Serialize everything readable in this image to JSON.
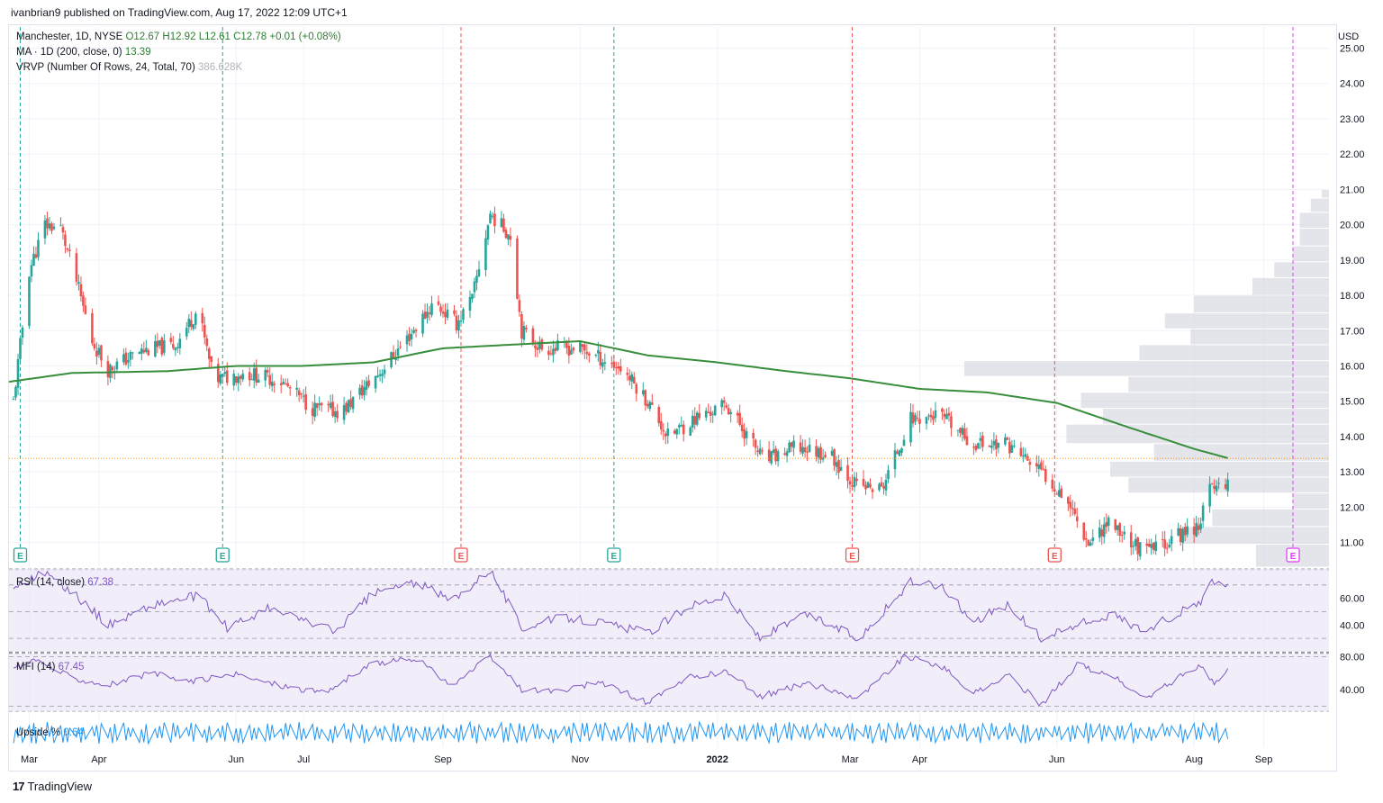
{
  "publisher": "ivanbrian9 published on TradingView.com, Aug 17, 2022 12:09 UTC+1",
  "footer": {
    "logo_glyph": "17",
    "brand": "TradingView"
  },
  "legend": {
    "symbol": "Manchester, 1D, NYSE",
    "open": "O12.67",
    "high": "H12.92",
    "low": "L12.61",
    "close": "C12.78",
    "change": "+0.01 (+0.08%)",
    "ma_label": "MA · 1D (200, close, 0)",
    "ma_value": "13.39",
    "vrvp_label": "VRVP (Number Of Rows, 24, Total, 70)",
    "vrvp_value": "386.628K",
    "rsi_label": "RSI (14, close)",
    "rsi_value": "67.38",
    "mfi_label": "MFI (14)",
    "mfi_value": "67.45",
    "upside_label": "Upside %",
    "upside_value": "0.64"
  },
  "colors": {
    "up": "#26a69a",
    "down": "#ef5350",
    "ma": "#388e3c",
    "rsi": "#7e57c2",
    "upside": "#2196f3",
    "earnings_future": "#e040fb"
  },
  "chart_data": [
    {
      "type": "candlestick",
      "currency": "USD",
      "y_ticks": [
        "11.00",
        "12.00",
        "13.00",
        "14.00",
        "15.00",
        "16.00",
        "17.00",
        "18.00",
        "19.00",
        "20.00",
        "21.00",
        "22.00",
        "23.00",
        "24.00",
        "25.00"
      ],
      "ylim": [
        10.3,
        25.6
      ],
      "x_ticks": [
        "Mar",
        "Apr",
        "Jun",
        "Jul",
        "Sep",
        "Nov",
        "2022",
        "Mar",
        "Apr",
        "Jun",
        "Aug",
        "Sep"
      ],
      "x_tick_dates": [
        "2021-03-01",
        "2021-04-01",
        "2021-06-01",
        "2021-07-01",
        "2021-09-01",
        "2021-11-01",
        "2022-01-01",
        "2022-03-01",
        "2022-04-01",
        "2022-06-01",
        "2022-08-01",
        "2022-09-01"
      ],
      "xlim": [
        "2021-02-20",
        "2022-09-30"
      ],
      "last_price": 12.78,
      "price_anchors": [
        [
          "2021-02-22",
          15.0
        ],
        [
          "2021-03-01",
          18.7
        ],
        [
          "2021-03-08",
          20.0
        ],
        [
          "2021-03-15",
          19.9
        ],
        [
          "2021-03-22",
          18.4
        ],
        [
          "2021-03-29",
          16.7
        ],
        [
          "2021-04-05",
          15.9
        ],
        [
          "2021-04-19",
          16.4
        ],
        [
          "2021-05-05",
          16.6
        ],
        [
          "2021-05-15",
          17.6
        ],
        [
          "2021-05-22",
          15.6
        ],
        [
          "2021-06-05",
          15.8
        ],
        [
          "2021-06-20",
          15.6
        ],
        [
          "2021-07-05",
          14.8
        ],
        [
          "2021-07-18",
          14.7
        ],
        [
          "2021-08-05",
          15.9
        ],
        [
          "2021-08-20",
          17.1
        ],
        [
          "2021-08-28",
          17.8
        ],
        [
          "2021-09-07",
          17.2
        ],
        [
          "2021-09-14",
          17.9
        ],
        [
          "2021-09-22",
          20.3
        ],
        [
          "2021-10-01",
          19.7
        ],
        [
          "2021-10-06",
          17.0
        ],
        [
          "2021-10-15",
          16.5
        ],
        [
          "2021-11-01",
          16.5
        ],
        [
          "2021-11-20",
          15.9
        ],
        [
          "2021-12-01",
          15.0
        ],
        [
          "2021-12-10",
          14.0
        ],
        [
          "2021-12-22",
          14.5
        ],
        [
          "2022-01-05",
          14.9
        ],
        [
          "2022-01-22",
          13.3
        ],
        [
          "2022-02-05",
          13.7
        ],
        [
          "2022-02-20",
          13.5
        ],
        [
          "2022-03-04",
          12.6
        ],
        [
          "2022-03-15",
          12.5
        ],
        [
          "2022-03-28",
          14.5
        ],
        [
          "2022-04-10",
          14.6
        ],
        [
          "2022-04-24",
          13.8
        ],
        [
          "2022-05-10",
          13.8
        ],
        [
          "2022-05-25",
          13.0
        ],
        [
          "2022-06-05",
          12.3
        ],
        [
          "2022-06-15",
          11.0
        ],
        [
          "2022-06-24",
          11.6
        ],
        [
          "2022-07-10",
          10.7
        ],
        [
          "2022-07-22",
          11.1
        ],
        [
          "2022-08-03",
          11.5
        ],
        [
          "2022-08-08",
          12.5
        ],
        [
          "2022-08-16",
          12.78
        ]
      ],
      "ma200_anchors": [
        [
          "2021-02-20",
          15.55
        ],
        [
          "2021-03-20",
          15.8
        ],
        [
          "2021-05-01",
          15.85
        ],
        [
          "2021-06-01",
          16.0
        ],
        [
          "2021-07-01",
          16.0
        ],
        [
          "2021-08-01",
          16.1
        ],
        [
          "2021-09-01",
          16.5
        ],
        [
          "2021-10-01",
          16.6
        ],
        [
          "2021-11-01",
          16.7
        ],
        [
          "2021-12-01",
          16.3
        ],
        [
          "2022-01-01",
          16.1
        ],
        [
          "2022-02-01",
          15.85
        ],
        [
          "2022-03-01",
          15.65
        ],
        [
          "2022-04-01",
          15.35
        ],
        [
          "2022-05-01",
          15.25
        ],
        [
          "2022-06-01",
          14.95
        ],
        [
          "2022-07-01",
          14.3
        ],
        [
          "2022-08-01",
          13.65
        ],
        [
          "2022-08-16",
          13.39
        ]
      ],
      "earnings": [
        {
          "date": "2021-02-25",
          "kind": "beat"
        },
        {
          "date": "2021-05-26",
          "kind": "beat"
        },
        {
          "date": "2021-09-09",
          "kind": "miss"
        },
        {
          "date": "2021-11-16",
          "kind": "beat"
        },
        {
          "date": "2022-03-02",
          "kind": "miss"
        },
        {
          "date": "2022-05-31",
          "kind": "miss"
        },
        {
          "date": "2022-09-14",
          "kind": "upcoming"
        }
      ],
      "volume_profile_rows": [
        {
          "low": 10.3,
          "high": 10.95,
          "vol": 0.2
        },
        {
          "low": 10.95,
          "high": 11.45,
          "vol": 0.4
        },
        {
          "low": 11.45,
          "high": 11.95,
          "vol": 0.32
        },
        {
          "low": 11.95,
          "high": 12.4,
          "vol": 0.1
        },
        {
          "low": 12.4,
          "high": 12.85,
          "vol": 0.55
        },
        {
          "low": 12.85,
          "high": 13.3,
          "vol": 0.6
        },
        {
          "low": 13.3,
          "high": 13.8,
          "vol": 0.48
        },
        {
          "low": 13.8,
          "high": 14.35,
          "vol": 0.72
        },
        {
          "low": 14.35,
          "high": 14.8,
          "vol": 0.62
        },
        {
          "low": 14.8,
          "high": 15.25,
          "vol": 0.68
        },
        {
          "low": 15.25,
          "high": 15.7,
          "vol": 0.55
        },
        {
          "low": 15.7,
          "high": 16.15,
          "vol": 1.0
        },
        {
          "low": 16.15,
          "high": 16.6,
          "vol": 0.52
        },
        {
          "low": 16.6,
          "high": 17.05,
          "vol": 0.38
        },
        {
          "low": 17.05,
          "high": 17.5,
          "vol": 0.45
        },
        {
          "low": 17.5,
          "high": 18.0,
          "vol": 0.37
        },
        {
          "low": 18.0,
          "high": 18.5,
          "vol": 0.21
        },
        {
          "low": 18.5,
          "high": 18.95,
          "vol": 0.15
        },
        {
          "low": 18.95,
          "high": 19.4,
          "vol": 0.1
        },
        {
          "low": 19.4,
          "high": 19.9,
          "vol": 0.08
        },
        {
          "low": 19.9,
          "high": 20.35,
          "vol": 0.08
        },
        {
          "low": 20.35,
          "high": 20.75,
          "vol": 0.05
        },
        {
          "low": 20.75,
          "high": 21.0,
          "vol": 0.02
        }
      ]
    },
    {
      "type": "line",
      "name": "RSI (14, close)",
      "y_ticks": [
        "40.00",
        "60.00"
      ],
      "ylim": [
        20,
        82
      ],
      "bands": [
        30,
        50,
        70
      ],
      "anchors": [
        [
          "2021-02-20",
          67
        ],
        [
          "2021-03-08",
          80
        ],
        [
          "2021-03-22",
          62
        ],
        [
          "2021-04-05",
          40
        ],
        [
          "2021-04-25",
          55
        ],
        [
          "2021-05-15",
          62
        ],
        [
          "2021-05-28",
          38
        ],
        [
          "2021-06-15",
          52
        ],
        [
          "2021-07-01",
          44
        ],
        [
          "2021-07-15",
          35
        ],
        [
          "2021-08-01",
          64
        ],
        [
          "2021-08-20",
          72
        ],
        [
          "2021-09-05",
          58
        ],
        [
          "2021-09-22",
          82
        ],
        [
          "2021-10-06",
          38
        ],
        [
          "2021-10-25",
          46
        ],
        [
          "2021-11-10",
          42
        ],
        [
          "2021-12-01",
          34
        ],
        [
          "2021-12-20",
          55
        ],
        [
          "2022-01-05",
          62
        ],
        [
          "2022-01-20",
          30
        ],
        [
          "2022-02-10",
          48
        ],
        [
          "2022-03-05",
          30
        ],
        [
          "2022-03-28",
          72
        ],
        [
          "2022-04-10",
          70
        ],
        [
          "2022-04-25",
          43
        ],
        [
          "2022-05-10",
          55
        ],
        [
          "2022-05-25",
          30
        ],
        [
          "2022-06-10",
          40
        ],
        [
          "2022-06-25",
          48
        ],
        [
          "2022-07-10",
          36
        ],
        [
          "2022-07-25",
          49
        ],
        [
          "2022-08-03",
          55
        ],
        [
          "2022-08-08",
          72
        ],
        [
          "2022-08-16",
          67.38
        ]
      ]
    },
    {
      "type": "line",
      "name": "MFI (14)",
      "y_ticks": [
        "40.00",
        "80.00"
      ],
      "ylim": [
        14,
        84
      ],
      "bands": [
        20,
        80
      ],
      "anchors": [
        [
          "2021-02-20",
          65
        ],
        [
          "2021-03-05",
          75
        ],
        [
          "2021-03-20",
          55
        ],
        [
          "2021-04-05",
          46
        ],
        [
          "2021-04-25",
          60
        ],
        [
          "2021-05-10",
          50
        ],
        [
          "2021-06-01",
          58
        ],
        [
          "2021-06-20",
          46
        ],
        [
          "2021-07-10",
          36
        ],
        [
          "2021-08-01",
          72
        ],
        [
          "2021-08-20",
          78
        ],
        [
          "2021-09-05",
          45
        ],
        [
          "2021-09-22",
          80
        ],
        [
          "2021-10-06",
          40
        ],
        [
          "2021-10-25",
          38
        ],
        [
          "2021-11-10",
          50
        ],
        [
          "2021-12-01",
          24
        ],
        [
          "2021-12-20",
          55
        ],
        [
          "2022-01-05",
          62
        ],
        [
          "2022-01-20",
          32
        ],
        [
          "2022-02-10",
          48
        ],
        [
          "2022-03-05",
          30
        ],
        [
          "2022-03-25",
          80
        ],
        [
          "2022-04-10",
          70
        ],
        [
          "2022-04-25",
          35
        ],
        [
          "2022-05-10",
          58
        ],
        [
          "2022-05-25",
          22
        ],
        [
          "2022-06-10",
          70
        ],
        [
          "2022-06-25",
          58
        ],
        [
          "2022-07-10",
          28
        ],
        [
          "2022-07-25",
          55
        ],
        [
          "2022-08-05",
          70
        ],
        [
          "2022-08-10",
          45
        ],
        [
          "2022-08-16",
          67.45
        ]
      ]
    },
    {
      "type": "line",
      "name": "Upside %",
      "last_value": 0.64
    }
  ]
}
